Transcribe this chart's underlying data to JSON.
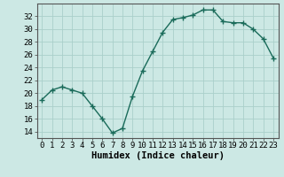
{
  "x": [
    0,
    1,
    2,
    3,
    4,
    5,
    6,
    7,
    8,
    9,
    10,
    11,
    12,
    13,
    14,
    15,
    16,
    17,
    18,
    19,
    20,
    21,
    22,
    23
  ],
  "y": [
    19,
    20.5,
    21,
    20.5,
    20,
    18,
    16,
    13.8,
    14.5,
    19.5,
    23.5,
    26.5,
    29.5,
    31.5,
    31.8,
    32.2,
    33,
    33,
    31.2,
    31,
    31,
    30,
    28.5,
    25.5
  ],
  "line_color": "#1a6b5a",
  "marker_color": "#1a6b5a",
  "bg_color": "#cce8e4",
  "grid_color": "#aacfca",
  "xlabel": "Humidex (Indice chaleur)",
  "ylim": [
    13,
    34
  ],
  "xlim": [
    -0.5,
    23.5
  ],
  "yticks": [
    14,
    16,
    18,
    20,
    22,
    24,
    26,
    28,
    30,
    32
  ],
  "xticks": [
    0,
    1,
    2,
    3,
    4,
    5,
    6,
    7,
    8,
    9,
    10,
    11,
    12,
    13,
    14,
    15,
    16,
    17,
    18,
    19,
    20,
    21,
    22,
    23
  ],
  "xtick_labels": [
    "0",
    "1",
    "2",
    "3",
    "4",
    "5",
    "6",
    "7",
    "8",
    "9",
    "10",
    "11",
    "12",
    "13",
    "14",
    "15",
    "16",
    "17",
    "18",
    "19",
    "20",
    "21",
    "22",
    "23"
  ],
  "xlabel_fontsize": 7.5,
  "tick_fontsize": 6.5,
  "line_width": 1.0,
  "marker_size": 2.5
}
